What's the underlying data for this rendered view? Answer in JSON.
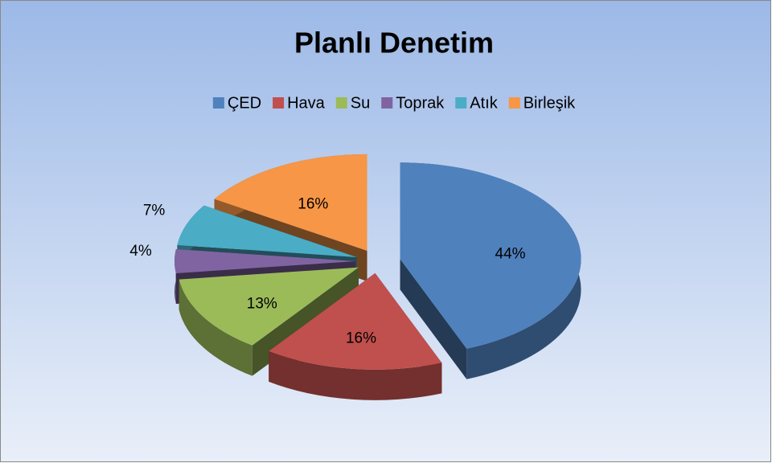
{
  "chart_data": {
    "type": "pie",
    "title": "Planlı Denetim",
    "categories": [
      "ÇED",
      "Hava",
      "Su",
      "Toprak",
      "Atık",
      "Birleşik"
    ],
    "values": [
      44,
      16,
      13,
      4,
      7,
      16
    ],
    "value_labels": [
      "44%",
      "16%",
      "13%",
      "4%",
      "7%",
      "16%"
    ],
    "colors": [
      "#4f81bd",
      "#c0504d",
      "#9bbb59",
      "#8064a2",
      "#4bacc6",
      "#f79646"
    ],
    "legend": "top"
  }
}
